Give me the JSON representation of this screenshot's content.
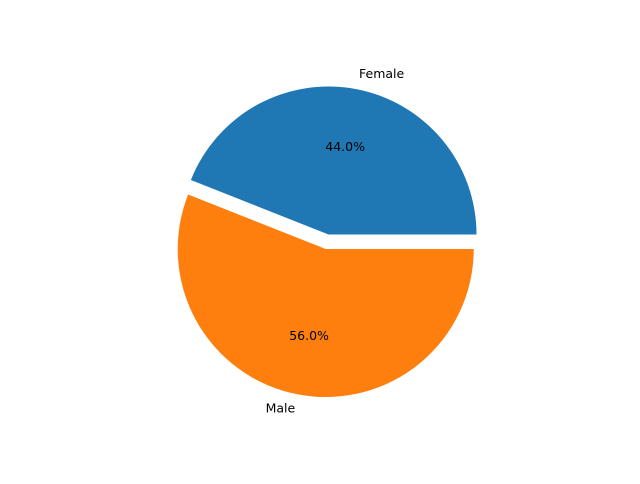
{
  "chart_data": {
    "type": "pie",
    "slices": [
      {
        "label": "Female",
        "value": 44.0,
        "pct_label": "44.0%",
        "color": "#1f77b4",
        "exploded": false
      },
      {
        "label": "Male",
        "value": 56.0,
        "pct_label": "56.0%",
        "color": "#ff7f0e",
        "exploded": true
      }
    ],
    "start_angle_deg": 0,
    "direction": "counterclockwise",
    "legend": "none"
  }
}
